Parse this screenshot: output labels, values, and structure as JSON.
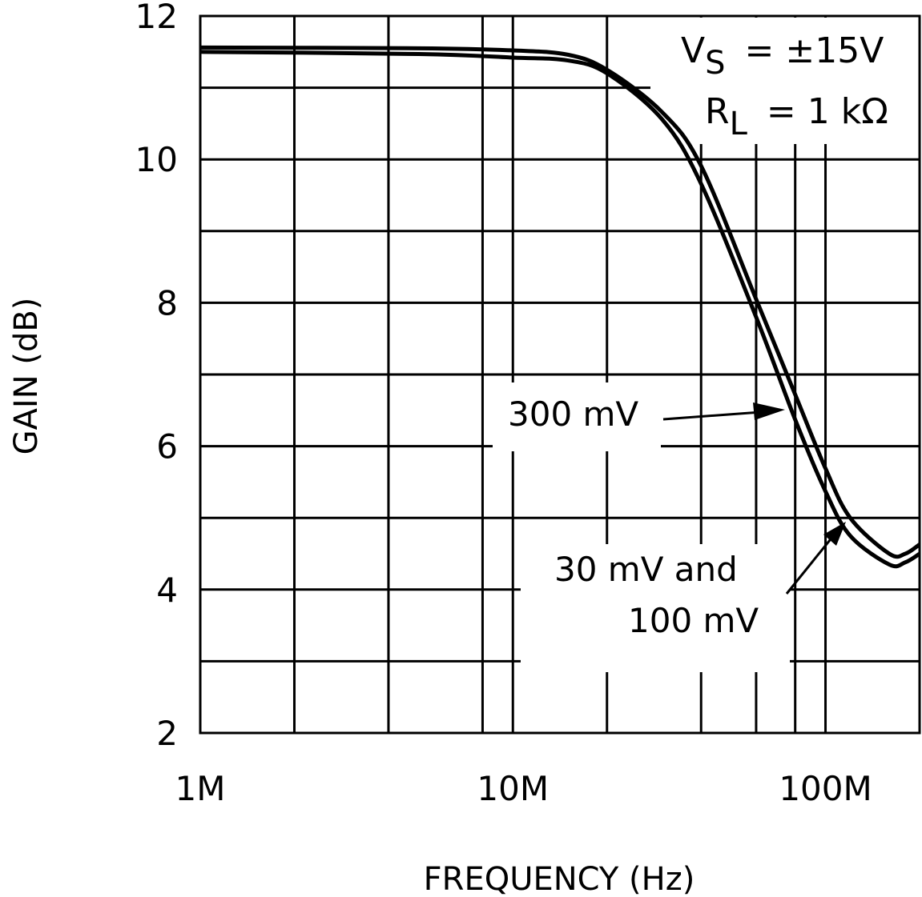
{
  "chart_data": {
    "type": "line",
    "title": "",
    "xlabel": "FREQUENCY (Hz)",
    "ylabel": "GAIN (dB)",
    "x_scale": "log",
    "xlim": [
      1,
      200
    ],
    "ylim": [
      2,
      12
    ],
    "x_ticks": [
      {
        "value": 1,
        "label": "1M"
      },
      {
        "value": 10,
        "label": "10M"
      },
      {
        "value": 100,
        "label": "100M"
      }
    ],
    "y_ticks": [
      2,
      4,
      6,
      8,
      10,
      12
    ],
    "x_grid": [
      2,
      4,
      8,
      10,
      20,
      40,
      60,
      80,
      100
    ],
    "y_grid": [
      3,
      4,
      5,
      6,
      7,
      8,
      9,
      10,
      11
    ],
    "grid": true,
    "conditions": {
      "vs": {
        "main": "V",
        "sub": "S",
        "value": "=  ±15V"
      },
      "rl": {
        "main": "R",
        "sub": "L",
        "value": "=  1 kΩ"
      }
    },
    "series": [
      {
        "name": "300 mV",
        "x": [
          1,
          5,
          10,
          15,
          20,
          30,
          40,
          60,
          80,
          100,
          120,
          160,
          180,
          200
        ],
        "y": [
          11.5,
          11.47,
          11.42,
          11.38,
          11.2,
          10.56,
          9.66,
          7.8,
          6.37,
          5.37,
          4.75,
          4.35,
          4.38,
          4.5
        ]
      },
      {
        "name": "30 mV and 100 mV",
        "x": [
          1,
          5,
          10,
          15,
          20,
          30,
          40,
          60,
          80,
          100,
          120,
          160,
          180,
          200
        ],
        "y": [
          11.56,
          11.55,
          11.52,
          11.46,
          11.25,
          10.66,
          9.91,
          8.05,
          6.72,
          5.69,
          5.0,
          4.5,
          4.5,
          4.63
        ]
      }
    ],
    "annotations": [
      {
        "text": "300 mV",
        "target_series": "300 mV"
      },
      {
        "text_lines": [
          "30 mV and",
          "100 mV"
        ],
        "target_series": "30 mV and 100 mV"
      }
    ],
    "colors": {
      "line": "#000000",
      "background": "#ffffff"
    }
  }
}
